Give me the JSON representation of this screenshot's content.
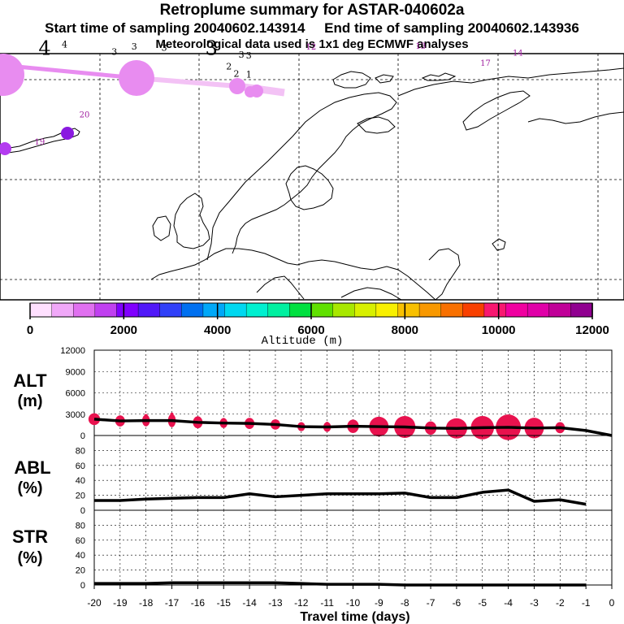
{
  "header": {
    "title": "Retroplume summary for ASTAR-040602a",
    "subtitle": "Start time of sampling 20040602.143914     End time of sampling 20040602.143936",
    "meteo": "Meteorological data used is 1x1 deg ECMWF analyses"
  },
  "map": {
    "plume_labels": [
      {
        "text": "4",
        "lon": -31,
        "lat": 72.5
      },
      {
        "text": "4",
        "lon": -27,
        "lat": 73.2
      },
      {
        "text": "3",
        "lon": -17,
        "lat": 72.5
      },
      {
        "text": "3",
        "lon": -13,
        "lat": 73.0
      },
      {
        "text": "3",
        "lon": -7,
        "lat": 72.9
      },
      {
        "text": "3",
        "lon": 2.5,
        "lat": 72.5
      },
      {
        "text": "3",
        "lon": 8.5,
        "lat": 72.2
      },
      {
        "text": "3",
        "lon": 10,
        "lat": 72.1
      },
      {
        "text": "2",
        "lon": 6,
        "lat": 71.0
      },
      {
        "text": "2",
        "lon": 7.5,
        "lat": 70.3
      },
      {
        "text": "1",
        "lon": 10,
        "lat": 70.2
      },
      {
        "text": "12",
        "lon": 22.5,
        "lat": 73.0
      },
      {
        "text": "13",
        "lon": 44.5,
        "lat": 73.1
      },
      {
        "text": "17",
        "lon": 57.5,
        "lat": 71.4
      },
      {
        "text": "14",
        "lon": 64,
        "lat": 72.4
      },
      {
        "text": "20",
        "lon": -23,
        "lat": 66.2
      },
      {
        "text": "19",
        "lon": -32,
        "lat": 63.5
      }
    ]
  },
  "colorbar": {
    "colors": [
      "#ffe0ff",
      "#f0a8f8",
      "#e070f0",
      "#c040f0",
      "#8000ff",
      "#5018f8",
      "#3040f8",
      "#0070f0",
      "#00a8f8",
      "#00d8f0",
      "#00f0d0",
      "#00f0a0",
      "#00e040",
      "#60e000",
      "#a8e800",
      "#d8f000",
      "#f8f000",
      "#f8c000",
      "#f89800",
      "#f87000",
      "#f84000",
      "#f81870",
      "#f000a0",
      "#e000a8",
      "#c00098",
      "#900090"
    ],
    "tick_labels": [
      "0",
      "2000",
      "4000",
      "6000",
      "8000",
      "10000",
      "12000"
    ],
    "xlabel": "Altitude (m)"
  },
  "panels": {
    "alt": {
      "label": "ALT",
      "unit": "(m)"
    },
    "abl": {
      "label": "ABL",
      "unit": "(%)"
    },
    "str": {
      "label": "STR",
      "unit": "(%)"
    }
  },
  "chart_data": [
    {
      "type": "line",
      "title": "ALT",
      "ylabel": "(m)",
      "xlabel": "Travel time (days)",
      "x": [
        -20,
        -19,
        -18,
        -17,
        -16,
        -15,
        -14,
        -13,
        -12,
        -11,
        -10,
        -9,
        -8,
        -7,
        -6,
        -5,
        -4,
        -3,
        -2,
        -1,
        0
      ],
      "values": [
        2300,
        2050,
        2100,
        2100,
        1850,
        1750,
        1700,
        1550,
        1250,
        1200,
        1300,
        1250,
        1200,
        1050,
        1000,
        1100,
        1150,
        1050,
        1100,
        700,
        0
      ],
      "ylim": [
        0,
        12000
      ],
      "yticks": [
        "12000",
        "9000",
        "6000",
        "3000",
        "0"
      ],
      "plume_spread": [
        {
          "x": -20,
          "size": 3,
          "spread": 400
        },
        {
          "x": -19,
          "size": 2.5,
          "spread": 500
        },
        {
          "x": -18,
          "size": 2,
          "spread": 700
        },
        {
          "x": -17,
          "size": 2,
          "spread": 900
        },
        {
          "x": -16,
          "size": 2.5,
          "spread": 600
        },
        {
          "x": -15,
          "size": 2,
          "spread": 500
        },
        {
          "x": -14,
          "size": 2.5,
          "spread": 500
        },
        {
          "x": -13,
          "size": 2.5,
          "spread": 400
        },
        {
          "x": -12,
          "size": 2,
          "spread": 400
        },
        {
          "x": -11,
          "size": 2,
          "spread": 500
        },
        {
          "x": -10,
          "size": 3,
          "spread": 600
        },
        {
          "x": -9,
          "size": 5,
          "spread": 700
        },
        {
          "x": -8,
          "size": 5.5,
          "spread": 800
        },
        {
          "x": -7,
          "size": 3,
          "spread": 600
        },
        {
          "x": -6,
          "size": 5.5,
          "spread": 600
        },
        {
          "x": -5,
          "size": 6,
          "spread": 800
        },
        {
          "x": -4,
          "size": 6.5,
          "spread": 900
        },
        {
          "x": -3,
          "size": 5,
          "spread": 800
        },
        {
          "x": -2,
          "size": 2.5,
          "spread": 500
        },
        {
          "x": -1,
          "size": 0,
          "spread": 0
        }
      ]
    },
    {
      "type": "line",
      "title": "ABL",
      "ylabel": "(%)",
      "x": [
        -20,
        -19,
        -18,
        -17,
        -16,
        -15,
        -14,
        -13,
        -12,
        -11,
        -10,
        -9,
        -8,
        -7,
        -6,
        -5,
        -4,
        -3,
        -2,
        -1
      ],
      "values": [
        13,
        13,
        15,
        16,
        17,
        17,
        22,
        18,
        20,
        22,
        22,
        22,
        23,
        17,
        17,
        24,
        27,
        12,
        14,
        8
      ],
      "ylim": [
        0,
        100
      ],
      "yticks": [
        "80",
        "60",
        "40",
        "20",
        "0"
      ]
    },
    {
      "type": "line",
      "title": "STR",
      "ylabel": "(%)",
      "x": [
        -20,
        -19,
        -18,
        -17,
        -16,
        -15,
        -14,
        -13,
        -12,
        -11,
        -10,
        -9,
        -8,
        -7,
        -6,
        -5,
        -4,
        -3,
        -2,
        -1
      ],
      "values": [
        2,
        2,
        2,
        3,
        3,
        3,
        3,
        3,
        2,
        1,
        1,
        1,
        0,
        0,
        0,
        0,
        0,
        0,
        0,
        0
      ],
      "ylim": [
        0,
        100
      ],
      "yticks": [
        "80",
        "60",
        "40",
        "20",
        "0"
      ]
    }
  ],
  "xaxis": {
    "tick_labels": [
      "-20",
      "-19",
      "-18",
      "-17",
      "-16",
      "-15",
      "-14",
      "-13",
      "-12",
      "-11",
      "-10",
      "-9",
      "-8",
      "-7",
      "-6",
      "-5",
      "-4",
      "-3",
      "-2",
      "-1",
      "0"
    ],
    "label": "Travel time (days)"
  },
  "colors": {
    "plume": "#e8124e",
    "line": "#000000",
    "track": "#e88cf0",
    "track_light": "#f3c2f5"
  }
}
